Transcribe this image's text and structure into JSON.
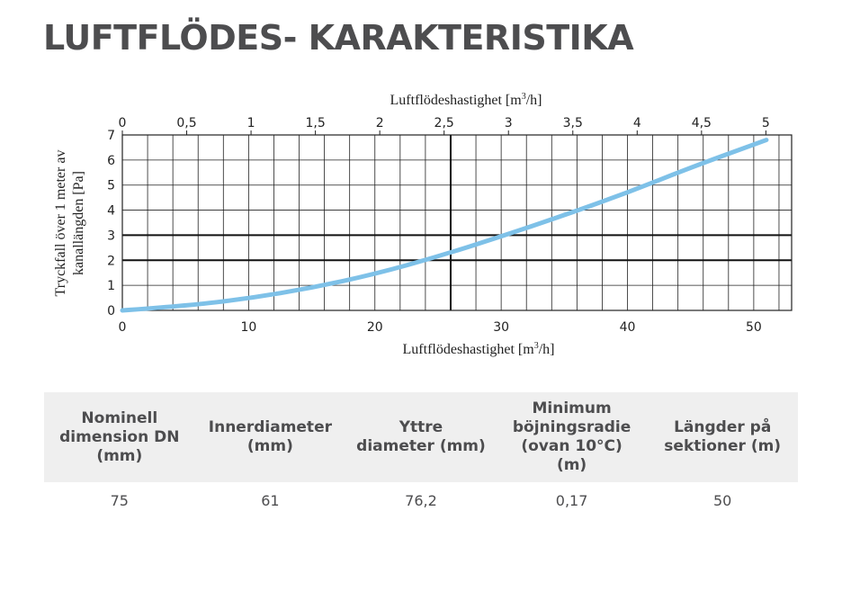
{
  "title": "LUFTFLÖDES- KARAKTERISTIKA",
  "chart_data": {
    "type": "line",
    "top_axis": {
      "label_prefix": "Luftflödeshastighet [m",
      "label_sup": "3",
      "label_suffix": "/h]",
      "range": [
        0,
        5.2
      ],
      "ticks": [
        "0",
        "0,5",
        "1",
        "1,5",
        "2",
        "2,5",
        "3",
        "3,5",
        "4",
        "4,5",
        "5"
      ],
      "tick_values": [
        0,
        0.5,
        1,
        1.5,
        2,
        2.5,
        3,
        3.5,
        4,
        4.5,
        5
      ]
    },
    "bottom_axis": {
      "label_prefix": "Luftflödeshastighet [m",
      "label_sup": "3",
      "label_suffix": "/h]",
      "range": [
        0,
        53
      ],
      "ticks": [
        "0",
        "10",
        "20",
        "30",
        "40",
        "50"
      ],
      "tick_values": [
        0,
        10,
        20,
        30,
        40,
        50
      ]
    },
    "y_axis": {
      "label_line1": "Tryckfall över 1 meter av",
      "label_line2": "kanallängden [Pa]",
      "range": [
        0,
        7
      ],
      "ticks": [
        "0",
        "1",
        "2",
        "3",
        "4",
        "5",
        "6",
        "7"
      ],
      "tick_values": [
        0,
        1,
        2,
        3,
        4,
        5,
        6,
        7
      ]
    },
    "grid": true,
    "series": [
      {
        "color": "#7ec1e8",
        "x": [
          0,
          5,
          10,
          15,
          20,
          25,
          30,
          35,
          40,
          45,
          51
        ],
        "y": [
          0,
          0.18,
          0.48,
          0.9,
          1.45,
          2.15,
          2.95,
          3.8,
          4.7,
          5.7,
          6.8
        ]
      }
    ]
  },
  "table": {
    "headers": [
      {
        "lines": [
          "Nominell",
          "dimension DN",
          "(mm)"
        ]
      },
      {
        "lines": [
          "Innerdiameter",
          "(mm)"
        ]
      },
      {
        "lines": [
          "Yttre",
          "diameter (mm)"
        ]
      },
      {
        "lines": [
          "Minimum",
          "böjningsradie",
          "(ovan 10°C)",
          "(m)"
        ]
      },
      {
        "lines": [
          "Längder på",
          "sektioner (m)"
        ]
      }
    ],
    "row": [
      "75",
      "61",
      "76,2",
      "0,17",
      "50"
    ]
  }
}
